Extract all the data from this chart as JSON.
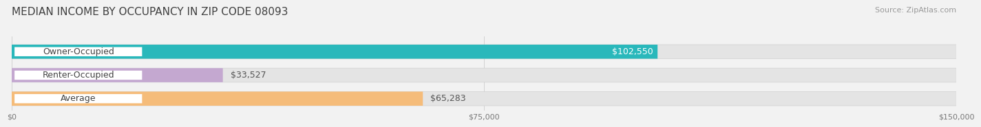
{
  "title": "MEDIAN INCOME BY OCCUPANCY IN ZIP CODE 08093",
  "source": "Source: ZipAtlas.com",
  "categories": [
    "Owner-Occupied",
    "Renter-Occupied",
    "Average"
  ],
  "values": [
    102550,
    33527,
    65283
  ],
  "bar_colors": [
    "#29b8bb",
    "#c4a8d0",
    "#f5bc7a"
  ],
  "bar_labels": [
    "$102,550",
    "$33,527",
    "$65,283"
  ],
  "label_inside": [
    true,
    false,
    false
  ],
  "xlim_max": 150000,
  "xtick_labels": [
    "$0",
    "$75,000",
    "$150,000"
  ],
  "xtick_values": [
    0,
    75000,
    150000
  ],
  "background_color": "#f2f2f2",
  "bar_bg_color": "#e4e4e4",
  "title_fontsize": 11,
  "label_fontsize": 9,
  "value_fontsize": 9,
  "tick_fontsize": 8,
  "source_fontsize": 8,
  "bar_height": 0.6,
  "bar_gap": 0.38
}
